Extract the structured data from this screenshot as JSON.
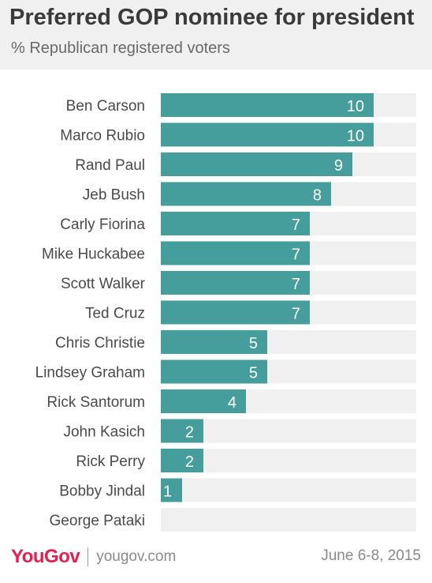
{
  "header": {
    "title": "Preferred GOP nominee for president",
    "subtitle": "% Republican registered voters"
  },
  "footer": {
    "brand": "YouGov",
    "url": "yougov.com",
    "date": "June 6-8, 2015"
  },
  "colors": {
    "bar": "#469e9c",
    "track": "#f0f0f0",
    "brand": "#e6204e"
  },
  "chart_data": {
    "type": "bar",
    "orientation": "horizontal",
    "title": "Preferred GOP nominee for president",
    "subtitle": "% Republican registered voters",
    "categories": [
      "Ben Carson",
      "Marco Rubio",
      "Rand Paul",
      "Jeb Bush",
      "Carly Fiorina",
      "Mike Huckabee",
      "Scott Walker",
      "Ted Cruz",
      "Chris Christie",
      "Lindsey Graham",
      "Rick Santorum",
      "John Kasich",
      "Rick Perry",
      "Bobby Jindal",
      "George Pataki"
    ],
    "values": [
      10,
      10,
      9,
      8,
      7,
      7,
      7,
      7,
      5,
      5,
      4,
      2,
      2,
      1,
      0
    ],
    "data_labels": [
      "10",
      "10",
      "9",
      "8",
      "7",
      "7",
      "7",
      "7",
      "5",
      "5",
      "4",
      "2",
      "2",
      "1",
      ""
    ],
    "xlim": [
      0,
      12
    ],
    "grid": false,
    "legend": "none"
  }
}
